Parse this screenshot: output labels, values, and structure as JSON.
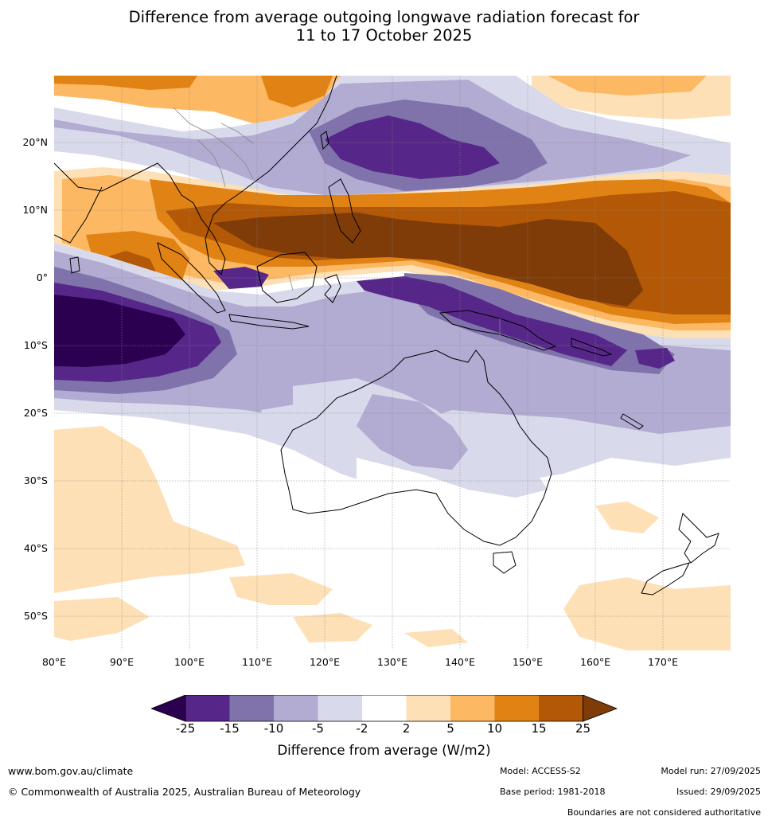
{
  "title": {
    "line1": "Difference from average outgoing longwave radiation forecast for",
    "line2": "11 to 17 October 2025"
  },
  "map": {
    "region": "Indian Ocean, Maritime Continent, Australia and south-west Pacific",
    "lat_labels": [
      "20°N",
      "10°N",
      "0°",
      "10°S",
      "20°S",
      "30°S",
      "40°S",
      "50°S"
    ],
    "lon_labels": [
      "80°E",
      "90°E",
      "100°E",
      "110°E",
      "120°E",
      "130°E",
      "140°E",
      "150°E",
      "160°E",
      "170°E"
    ],
    "colors": {
      "ocean_bg": "#ffffff",
      "coast": "#000000",
      "border": "#888888",
      "grid": "#888888"
    }
  },
  "legend": {
    "tick_labels": [
      "-25",
      "-15",
      "-10",
      "-5",
      "-2",
      "2",
      "5",
      "10",
      "15",
      "25"
    ],
    "colors": [
      "#2c0050",
      "#562789",
      "#8073ac",
      "#b2abd2",
      "#d8daeb",
      "#ffffff",
      "#fee0b6",
      "#fdb863",
      "#e08214",
      "#b35806",
      "#7f3b08"
    ],
    "title": "Difference from average (W/m2)"
  },
  "footer": {
    "website": "www.bom.gov.au/climate",
    "copyright": "© Commonwealth of Australia 2025, Australian Bureau of Meteorology",
    "model": "Model: ACCESS-S2",
    "base_period": "Base period: 1981-2018",
    "model_run": "Model run: 27/09/2025",
    "issued": "Issued: 29/09/2025",
    "disclaimer": "Boundaries are not considered authoritative"
  }
}
